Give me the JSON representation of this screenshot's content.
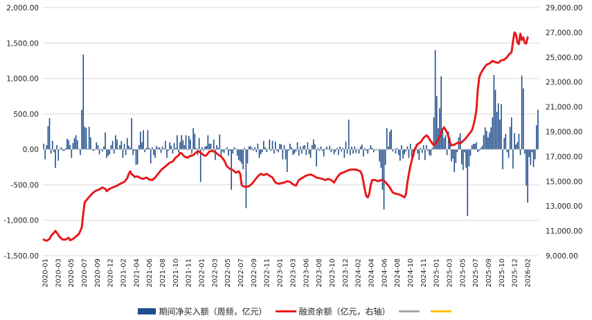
{
  "chart_data": {
    "type": "bar+line",
    "x_tick_labels": [
      "2020-01",
      "2020-03",
      "2020-05",
      "2020-07",
      "2020-09",
      "2020-12",
      "2021-02",
      "2021-04",
      "2021-06",
      "2021-08",
      "2021-10",
      "2021-11",
      "2022-01",
      "2022-03",
      "2022-05",
      "2022-07",
      "2022-09",
      "2022-11",
      "2023-01",
      "2023-03",
      "2023-06",
      "2023-08",
      "2023-10",
      "2023-12",
      "2024-02",
      "2024-04",
      "2024-06",
      "2024-08",
      "2024-10",
      "2024-11",
      "2025-01",
      "2025-03",
      "2025-05",
      "2025-07",
      "2025-09",
      "2025-10",
      "2025-12",
      "2026-02"
    ],
    "left_axis": {
      "min": -1500,
      "max": 2000,
      "step": 500,
      "tick_labels": [
        "2,000.00",
        "1,500.00",
        "1,000.00",
        "500.00",
        "0.00",
        "-500.00",
        "-1,000.00",
        "-1,500.00"
      ]
    },
    "right_axis": {
      "min": 9000,
      "max": 29000,
      "step": 2000,
      "tick_labels": [
        "29,000.00",
        "27,000.00",
        "25,000.00",
        "23,000.00",
        "21,000.00",
        "19,000.00",
        "17,000.00",
        "15,000.00",
        "13,000.00",
        "11,000.00",
        "9,000.00"
      ]
    },
    "series": [
      {
        "name": "期间净买入额（周频，亿元）",
        "type": "bar",
        "axis": "left",
        "color": "#1f4e8c",
        "values": [
          80,
          -140,
          60,
          330,
          440,
          -60,
          120,
          -40,
          -260,
          60,
          -160,
          -10,
          30,
          -20,
          -20,
          20,
          150,
          130,
          60,
          -120,
          90,
          160,
          200,
          130,
          -10,
          -80,
          560,
          1340,
          320,
          300,
          10,
          320,
          170,
          -10,
          -20,
          -10,
          100,
          60,
          -70,
          10,
          -30,
          40,
          240,
          -120,
          -90,
          -70,
          60,
          120,
          -60,
          200,
          140,
          10,
          60,
          120,
          -120,
          80,
          -80,
          160,
          50,
          20,
          440,
          -80,
          -20,
          -220,
          -210,
          60,
          250,
          100,
          270,
          -40,
          20,
          270,
          20,
          -200,
          30,
          -80,
          -120,
          50,
          20,
          30,
          -50,
          40,
          10,
          120,
          -120,
          -20,
          100,
          50,
          -60,
          90,
          20,
          200,
          -40,
          100,
          200,
          130,
          60,
          200,
          -10,
          190,
          140,
          -60,
          300,
          220,
          20,
          -80,
          160,
          -460,
          30,
          -20,
          40,
          50,
          200,
          80,
          80,
          -40,
          140,
          -150,
          60,
          20,
          210,
          -80,
          -30,
          -50,
          -10,
          30,
          -90,
          -20,
          -570,
          -60,
          30,
          10,
          -90,
          -150,
          -170,
          -200,
          -280,
          20,
          -830,
          -200,
          40,
          50,
          20,
          -20,
          30,
          -40,
          80,
          -120,
          -70,
          -40,
          120,
          30,
          -40,
          10,
          140,
          -20,
          120,
          -60,
          110,
          -20,
          -40,
          80,
          70,
          -140,
          60,
          -140,
          -320,
          -20,
          80,
          30,
          -80,
          -60,
          -30,
          100,
          -90,
          40,
          -60,
          50,
          60,
          -80,
          100,
          -70,
          -120,
          60,
          140,
          70,
          -240,
          20,
          -20,
          40,
          -20,
          -100,
          10,
          40,
          -10,
          50,
          -40,
          10,
          -70,
          -30,
          20,
          -80,
          40,
          -30,
          20,
          -120,
          110,
          -60,
          420,
          -80,
          40,
          -60,
          40,
          -50,
          10,
          -60,
          40,
          70,
          -100,
          20,
          -20,
          -60,
          10,
          60,
          20,
          -40,
          -10,
          -10,
          -10,
          -170,
          -260,
          -570,
          -850,
          -220,
          300,
          40,
          250,
          280,
          -30,
          10,
          -60,
          20,
          -80,
          -160,
          60,
          -130,
          -70,
          -30,
          40,
          -120,
          80,
          -120,
          -40,
          -30,
          70,
          -60,
          -150,
          20,
          -50,
          60,
          -150,
          60,
          -20,
          -80,
          -90,
          20,
          450,
          1400,
          750,
          300,
          580,
          1030,
          300,
          160,
          200,
          -80,
          250,
          170,
          -170,
          -130,
          -320,
          -190,
          -40,
          170,
          230,
          -210,
          -290,
          -40,
          -260,
          -940,
          -240,
          -90,
          60,
          80,
          80,
          100,
          -40,
          -20,
          20,
          50,
          200,
          310,
          260,
          170,
          240,
          310,
          450,
          1050,
          840,
          530,
          650,
          420,
          640,
          -280,
          160,
          220,
          -40,
          -120,
          320,
          450,
          -270,
          230,
          70,
          100,
          220,
          -80,
          1040,
          860,
          -60,
          -510,
          -750,
          -110,
          -220,
          -40,
          -250,
          -140,
          340,
          560
        ]
      },
      {
        "name": "融资余额（亿元，右轴）",
        "type": "line",
        "axis": "right",
        "color": "#e8191b",
        "points": [
          [
            0,
            10300
          ],
          [
            2,
            10200
          ],
          [
            4,
            10350
          ],
          [
            5,
            10600
          ],
          [
            7,
            10850
          ],
          [
            8,
            11000
          ],
          [
            9,
            10850
          ],
          [
            11,
            10500
          ],
          [
            13,
            10300
          ],
          [
            15,
            10300
          ],
          [
            17,
            10450
          ],
          [
            18,
            10250
          ],
          [
            20,
            10350
          ],
          [
            22,
            10550
          ],
          [
            24,
            10750
          ],
          [
            25,
            11000
          ],
          [
            26,
            11300
          ],
          [
            27,
            12400
          ],
          [
            28,
            13300
          ],
          [
            30,
            13600
          ],
          [
            33,
            14000
          ],
          [
            35,
            14200
          ],
          [
            38,
            14350
          ],
          [
            40,
            14500
          ],
          [
            42,
            14400
          ],
          [
            43,
            14200
          ],
          [
            45,
            14400
          ],
          [
            48,
            14550
          ],
          [
            50,
            14650
          ],
          [
            53,
            14850
          ],
          [
            55,
            14950
          ],
          [
            57,
            15250
          ],
          [
            58,
            15600
          ],
          [
            59,
            15800
          ],
          [
            60,
            15550
          ],
          [
            61,
            15500
          ],
          [
            62,
            15350
          ],
          [
            64,
            15400
          ],
          [
            66,
            15250
          ],
          [
            68,
            15200
          ],
          [
            70,
            15300
          ],
          [
            72,
            15150
          ],
          [
            74,
            15100
          ],
          [
            76,
            15300
          ],
          [
            78,
            15600
          ],
          [
            80,
            15900
          ],
          [
            82,
            16100
          ],
          [
            84,
            16300
          ],
          [
            86,
            16500
          ],
          [
            88,
            16600
          ],
          [
            90,
            16900
          ],
          [
            92,
            17100
          ],
          [
            93,
            17300
          ],
          [
            94,
            17250
          ],
          [
            96,
            17000
          ],
          [
            98,
            16900
          ],
          [
            100,
            17050
          ],
          [
            102,
            17100
          ],
          [
            104,
            17350
          ],
          [
            106,
            17400
          ],
          [
            108,
            17200
          ],
          [
            110,
            17050
          ],
          [
            111,
            17100
          ],
          [
            113,
            17400
          ],
          [
            115,
            17450
          ],
          [
            117,
            17350
          ],
          [
            119,
            17150
          ],
          [
            121,
            17000
          ],
          [
            123,
            16700
          ],
          [
            125,
            16200
          ],
          [
            127,
            16000
          ],
          [
            129,
            15900
          ],
          [
            131,
            15700
          ],
          [
            133,
            15800
          ],
          [
            134,
            15600
          ],
          [
            135,
            14700
          ],
          [
            136,
            14600
          ],
          [
            138,
            14550
          ],
          [
            140,
            14600
          ],
          [
            142,
            14800
          ],
          [
            144,
            15100
          ],
          [
            146,
            15400
          ],
          [
            148,
            15600
          ],
          [
            150,
            15500
          ],
          [
            152,
            15600
          ],
          [
            154,
            15450
          ],
          [
            156,
            15300
          ],
          [
            158,
            14900
          ],
          [
            160,
            14800
          ],
          [
            162,
            14850
          ],
          [
            164,
            14900
          ],
          [
            166,
            15000
          ],
          [
            168,
            14950
          ],
          [
            170,
            14750
          ],
          [
            172,
            14650
          ],
          [
            174,
            15100
          ],
          [
            176,
            15250
          ],
          [
            178,
            15400
          ],
          [
            180,
            15500
          ],
          [
            182,
            15550
          ],
          [
            184,
            15450
          ],
          [
            186,
            15300
          ],
          [
            188,
            15250
          ],
          [
            190,
            15200
          ],
          [
            192,
            15100
          ],
          [
            194,
            15200
          ],
          [
            196,
            15100
          ],
          [
            198,
            14900
          ],
          [
            200,
            15300
          ],
          [
            202,
            15600
          ],
          [
            204,
            15700
          ],
          [
            206,
            15800
          ],
          [
            208,
            15900
          ],
          [
            210,
            15950
          ],
          [
            212,
            15950
          ],
          [
            214,
            15900
          ],
          [
            216,
            15800
          ],
          [
            217,
            15550
          ],
          [
            218,
            14950
          ],
          [
            219,
            14300
          ],
          [
            220,
            13800
          ],
          [
            221,
            13700
          ],
          [
            222,
            14000
          ],
          [
            223,
            14700
          ],
          [
            224,
            15100
          ],
          [
            226,
            15100
          ],
          [
            228,
            15000
          ],
          [
            230,
            15100
          ],
          [
            232,
            15050
          ],
          [
            234,
            14800
          ],
          [
            236,
            14500
          ],
          [
            238,
            14100
          ],
          [
            240,
            14000
          ],
          [
            242,
            13950
          ],
          [
            244,
            13850
          ],
          [
            246,
            13700
          ],
          [
            247,
            13950
          ],
          [
            248,
            14900
          ],
          [
            249,
            15600
          ],
          [
            250,
            16200
          ],
          [
            251,
            16700
          ],
          [
            252,
            17100
          ],
          [
            253,
            17600
          ],
          [
            255,
            18000
          ],
          [
            257,
            18150
          ],
          [
            259,
            18500
          ],
          [
            261,
            18700
          ],
          [
            262,
            18600
          ],
          [
            264,
            18200
          ],
          [
            266,
            17900
          ],
          [
            268,
            18150
          ],
          [
            270,
            18600
          ],
          [
            271,
            19000
          ],
          [
            273,
            19350
          ],
          [
            275,
            18950
          ],
          [
            276,
            18600
          ],
          [
            277,
            18150
          ],
          [
            278,
            17900
          ],
          [
            280,
            17950
          ],
          [
            282,
            18100
          ],
          [
            284,
            18050
          ],
          [
            286,
            18250
          ],
          [
            288,
            18500
          ],
          [
            290,
            18800
          ],
          [
            292,
            19100
          ],
          [
            293,
            19500
          ],
          [
            294,
            20000
          ],
          [
            295,
            20700
          ],
          [
            296,
            22400
          ],
          [
            297,
            23400
          ],
          [
            298,
            23700
          ],
          [
            300,
            24100
          ],
          [
            302,
            24400
          ],
          [
            304,
            24500
          ],
          [
            306,
            24700
          ],
          [
            308,
            24600
          ],
          [
            310,
            24550
          ],
          [
            312,
            24750
          ],
          [
            314,
            24800
          ],
          [
            316,
            25000
          ],
          [
            317,
            25200
          ],
          [
            319,
            25400
          ],
          [
            320,
            26300
          ],
          [
            321,
            27000
          ],
          [
            322,
            26850
          ],
          [
            323,
            26200
          ],
          [
            324,
            26050
          ],
          [
            325,
            26900
          ],
          [
            326,
            26400
          ],
          [
            327,
            26600
          ],
          [
            328,
            26150
          ],
          [
            329,
            26100
          ],
          [
            330,
            26600
          ]
        ]
      },
      {
        "name": "",
        "type": "line",
        "axis": "left",
        "color": "#a6a6a6",
        "values": []
      },
      {
        "name": "",
        "type": "line",
        "axis": "left",
        "color": "#ffc000",
        "values": []
      }
    ]
  }
}
